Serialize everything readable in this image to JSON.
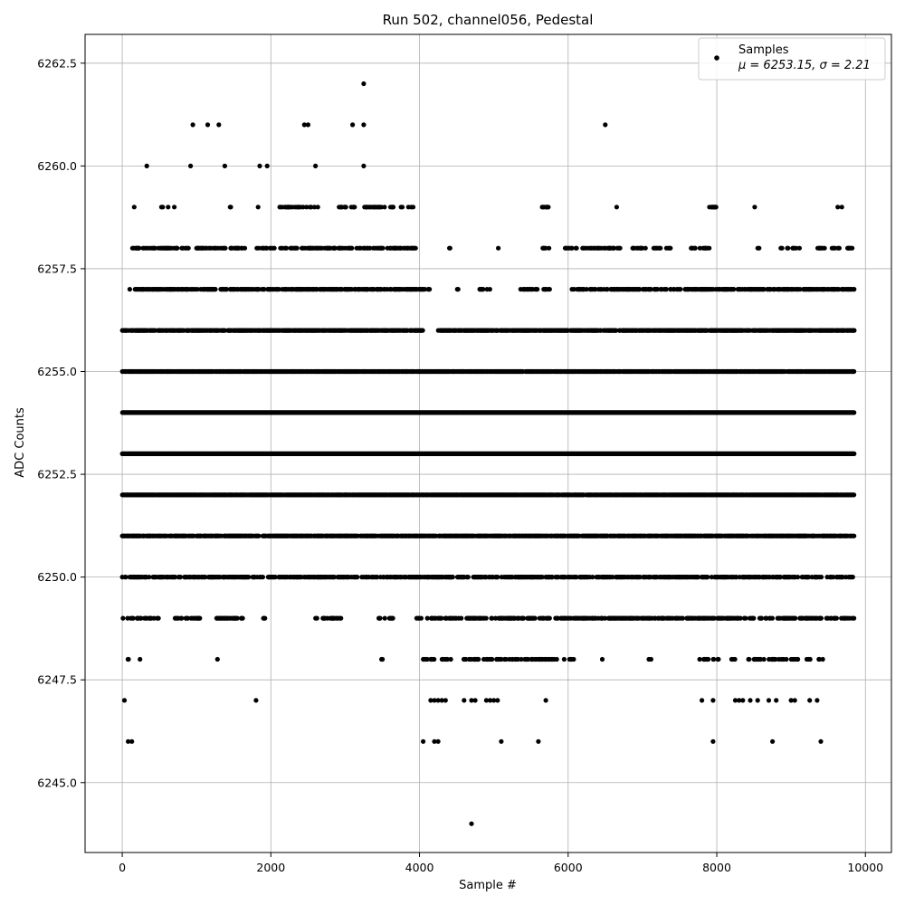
{
  "chart_data": {
    "type": "scatter",
    "title": "Run 502, channel056, Pedestal",
    "xlabel": "Sample #",
    "ylabel": "ADC Counts",
    "xlim": [
      -500,
      10350
    ],
    "ylim": [
      6243.3,
      6263.2
    ],
    "xticks": [
      0,
      2000,
      4000,
      6000,
      8000,
      10000
    ],
    "xtick_labels": [
      "0",
      "2000",
      "4000",
      "6000",
      "8000",
      "10000"
    ],
    "yticks": [
      6245.0,
      6247.5,
      6250.0,
      6252.5,
      6255.0,
      6257.5,
      6260.0,
      6262.5
    ],
    "ytick_labels": [
      "6245.0",
      "6247.5",
      "6250.0",
      "6252.5",
      "6255.0",
      "6257.5",
      "6260.0",
      "6262.5"
    ],
    "grid": true,
    "legend": {
      "position": "top-right",
      "series_name": "Samples",
      "stats_line": "μ = 6253.15, σ = 2.21"
    },
    "colors": {
      "marker": "#000000",
      "grid": "#b0b0b0"
    },
    "n_samples_approx": 9850,
    "series": [
      {
        "name": "Samples",
        "sparse_points": [
          [
            4700,
            6244
          ],
          [
            30,
            6247
          ],
          [
            1800,
            6247
          ],
          [
            5700,
            6247
          ],
          [
            7800,
            6247
          ],
          [
            7950,
            6247
          ],
          [
            8250,
            6247
          ],
          [
            8300,
            6247
          ],
          [
            8350,
            6247
          ],
          [
            8450,
            6247
          ],
          [
            8550,
            6247
          ],
          [
            8700,
            6247
          ],
          [
            8800,
            6247
          ],
          [
            9000,
            6247
          ],
          [
            9050,
            6247
          ],
          [
            9250,
            6247
          ],
          [
            9350,
            6247
          ],
          [
            4150,
            6247
          ],
          [
            4200,
            6247
          ],
          [
            4250,
            6247
          ],
          [
            4300,
            6247
          ],
          [
            4350,
            6247
          ],
          [
            4600,
            6247
          ],
          [
            4700,
            6247
          ],
          [
            4750,
            6247
          ],
          [
            4900,
            6247
          ],
          [
            4950,
            6247
          ],
          [
            5000,
            6247
          ],
          [
            5050,
            6247
          ],
          [
            80,
            6246
          ],
          [
            130,
            6246
          ],
          [
            4050,
            6246
          ],
          [
            4200,
            6246
          ],
          [
            4250,
            6246
          ],
          [
            5100,
            6246
          ],
          [
            5600,
            6246
          ],
          [
            7950,
            6246
          ],
          [
            8750,
            6246
          ],
          [
            9400,
            6246
          ],
          [
            950,
            6261
          ],
          [
            1150,
            6261
          ],
          [
            1300,
            6261
          ],
          [
            2450,
            6261
          ],
          [
            2500,
            6261
          ],
          [
            3100,
            6261
          ],
          [
            3250,
            6261
          ],
          [
            6500,
            6261
          ],
          [
            3250,
            6262
          ],
          [
            330,
            6260
          ],
          [
            920,
            6260
          ],
          [
            1380,
            6260
          ],
          [
            1850,
            6260
          ],
          [
            1950,
            6260
          ],
          [
            2600,
            6260
          ],
          [
            3250,
            6260
          ]
        ],
        "levels": [
          {
            "y": 6248,
            "segments": [
              [
                30,
                150
              ],
              [
                230,
                240
              ],
              [
                1270,
                1300
              ],
              [
                2050,
                2060
              ],
              [
                3480,
                3500
              ],
              [
                4050,
                4450
              ],
              [
                4550,
                5850
              ],
              [
                5900,
                6100
              ],
              [
                6300,
                6320
              ],
              [
                6450,
                6460
              ],
              [
                6750,
                6800
              ],
              [
                7050,
                7200
              ],
              [
                7350,
                7360
              ],
              [
                7750,
                7900
              ],
              [
                7950,
                8050
              ],
              [
                8100,
                8250
              ],
              [
                8400,
                8650
              ],
              [
                8700,
                8950
              ],
              [
                9000,
                9150
              ],
              [
                9200,
                9450
              ],
              [
                9800,
                9820
              ]
            ],
            "density": 0.35
          },
          {
            "y": 6249,
            "segments": [
              [
                0,
                500
              ],
              [
                700,
                1050
              ],
              [
                1250,
                1650
              ],
              [
                1900,
                1920
              ],
              [
                2150,
                2160
              ],
              [
                2600,
                2950
              ],
              [
                3050,
                3060
              ],
              [
                3450,
                3650
              ],
              [
                3950,
                9850
              ]
            ],
            "density": 0.45
          },
          {
            "y": 6250,
            "segments": [
              [
                0,
                9850
              ]
            ],
            "density": 0.55
          },
          {
            "y": 6251,
            "segments": [
              [
                0,
                9850
              ]
            ],
            "density": 0.8
          },
          {
            "y": 6252,
            "segments": [
              [
                0,
                9850
              ]
            ],
            "density": 0.95
          },
          {
            "y": 6253,
            "segments": [
              [
                0,
                9850
              ]
            ],
            "density": 1.0
          },
          {
            "y": 6254,
            "segments": [
              [
                0,
                9850
              ]
            ],
            "density": 1.0
          },
          {
            "y": 6255,
            "segments": [
              [
                0,
                9850
              ]
            ],
            "density": 0.9
          },
          {
            "y": 6256,
            "segments": [
              [
                0,
                4050
              ],
              [
                4250,
                9850
              ]
            ],
            "density": 0.75
          },
          {
            "y": 6257,
            "segments": [
              [
                100,
                4150
              ],
              [
                4500,
                4520
              ],
              [
                4800,
                4950
              ],
              [
                5350,
                5600
              ],
              [
                5650,
                5750
              ],
              [
                6050,
                9850
              ]
            ],
            "density": 0.55
          },
          {
            "y": 6258,
            "segments": [
              [
                100,
                750
              ],
              [
                800,
                1400
              ],
              [
                1450,
                1650
              ],
              [
                1800,
                2050
              ],
              [
                2100,
                3950
              ],
              [
                4400,
                4410
              ],
              [
                5050,
                5060
              ],
              [
                5200,
                5210
              ],
              [
                5650,
                5750
              ],
              [
                5950,
                6700
              ],
              [
                6850,
                7050
              ],
              [
                7150,
                7400
              ],
              [
                7600,
                7900
              ],
              [
                8550,
                8600
              ],
              [
                8850,
                9150
              ],
              [
                9350,
                9450
              ],
              [
                9550,
                9650
              ],
              [
                9750,
                9850
              ]
            ],
            "density": 0.4
          },
          {
            "y": 6259,
            "segments": [
              [
                150,
                160
              ],
              [
                500,
                650
              ],
              [
                700,
                710
              ],
              [
                1200,
                1210
              ],
              [
                1450,
                1460
              ],
              [
                1800,
                1850
              ],
              [
                2000,
                2010
              ],
              [
                2100,
                2700
              ],
              [
                2900,
                3150
              ],
              [
                3250,
                3650
              ],
              [
                3750,
                3800
              ],
              [
                3850,
                3950
              ],
              [
                5650,
                5750
              ],
              [
                6650,
                6660
              ],
              [
                7200,
                7210
              ],
              [
                7900,
                8000
              ],
              [
                8500,
                8510
              ],
              [
                9200,
                9210
              ],
              [
                9600,
                9700
              ]
            ],
            "density": 0.35
          }
        ]
      }
    ]
  }
}
